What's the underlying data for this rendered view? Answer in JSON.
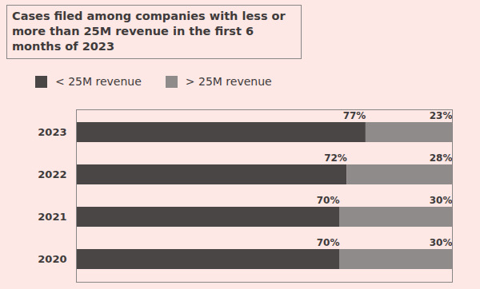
{
  "chart_data": {
    "type": "bar",
    "title": "Cases filed among companies with less or more than 25M revenue in the first 6 months of 2023",
    "orientation": "horizontal",
    "stacked": true,
    "data_labels": true,
    "tick_labels": "y",
    "legend": "top-left",
    "categories": [
      "2023",
      "2022",
      "2021",
      "2020"
    ],
    "series": [
      {
        "name": "< 25M revenue",
        "color": "#4a4646",
        "values": [
          77,
          72,
          70,
          70
        ],
        "value_labels": [
          "77%",
          "72%",
          "70%",
          "70%"
        ]
      },
      {
        "name": "> 25M revenue",
        "color": "#8f8b8b",
        "values": [
          23,
          28,
          30,
          30
        ],
        "value_labels": [
          "23%",
          "28%",
          "30%",
          "30%"
        ]
      }
    ],
    "xlim": [
      0,
      100
    ],
    "xticks": []
  }
}
